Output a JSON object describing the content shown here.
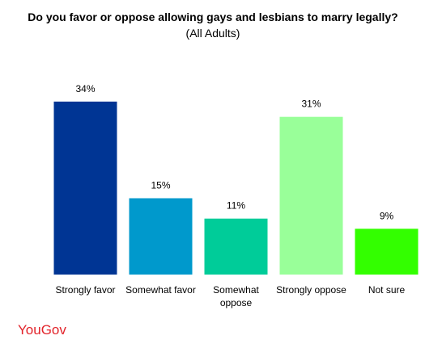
{
  "chart_data": {
    "type": "bar",
    "title": "Do you favor or oppose allowing gays and lesbians to marry legally?",
    "subtitle": "(All Adults)",
    "categories": [
      "Strongly favor",
      "Somewhat favor",
      "Somewhat oppose",
      "Strongly oppose",
      "Not sure"
    ],
    "values": [
      34,
      15,
      11,
      31,
      9
    ],
    "value_labels": [
      "34%",
      "15%",
      "11%",
      "31%",
      "9%"
    ],
    "colors": [
      "#003594",
      "#0099cc",
      "#00cc99",
      "#99ff99",
      "#33ff00"
    ],
    "logo": "YouGov"
  }
}
